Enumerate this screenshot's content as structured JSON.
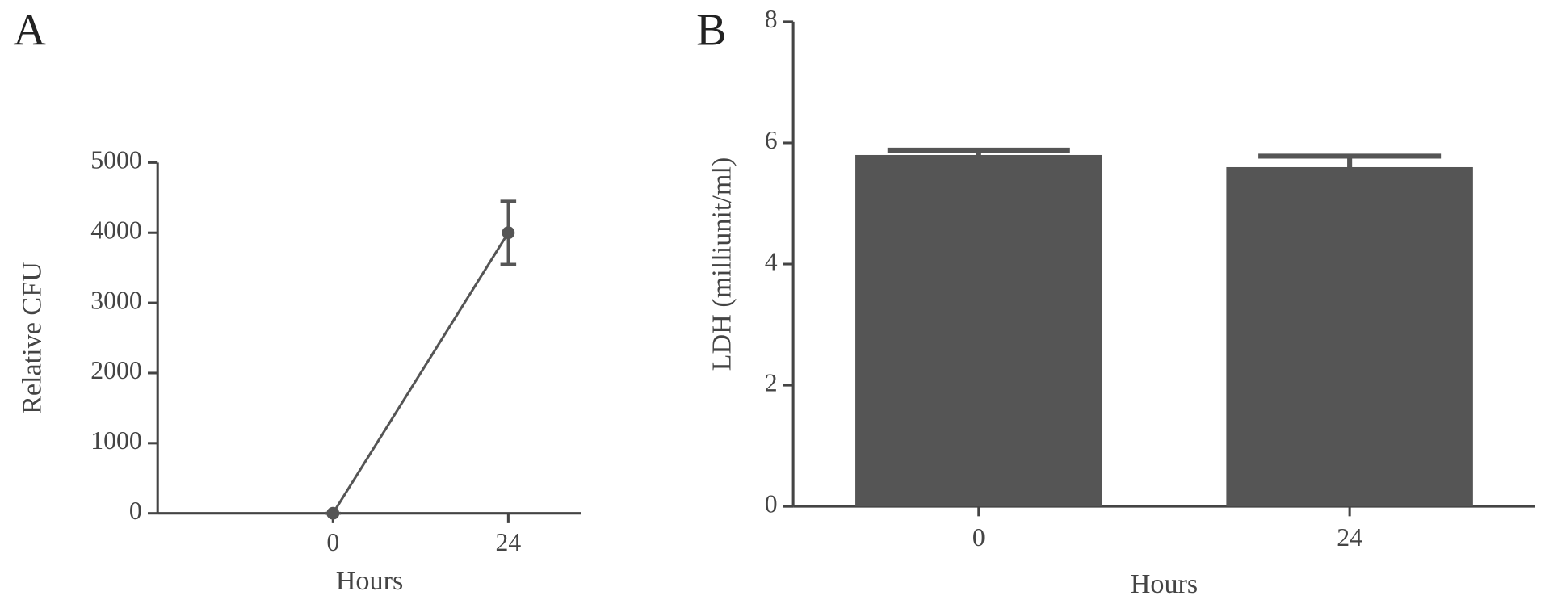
{
  "chart_data": [
    {
      "type": "line",
      "label": "A",
      "x_label": "Hours",
      "y_label": "Relative CFU",
      "x": [
        0,
        24
      ],
      "xticks": [
        0,
        24
      ],
      "xlim": [
        -24,
        34
      ],
      "values": [
        0,
        4000
      ],
      "errors": [
        0,
        450
      ],
      "color": "#555555",
      "ylim": [
        0,
        5000
      ],
      "yticks": [
        0,
        1000,
        2000,
        3000,
        4000,
        5000
      ]
    },
    {
      "type": "bar",
      "label": "B",
      "x_label": "Hours",
      "y_label": "LDH (milliunit/ml)",
      "categories": [
        "0",
        "24"
      ],
      "values": [
        5.8,
        5.6
      ],
      "errors": [
        0.08,
        0.18
      ],
      "color": "#555555",
      "ylim": [
        0,
        8
      ],
      "yticks": [
        0,
        2,
        4,
        6,
        8
      ]
    }
  ]
}
